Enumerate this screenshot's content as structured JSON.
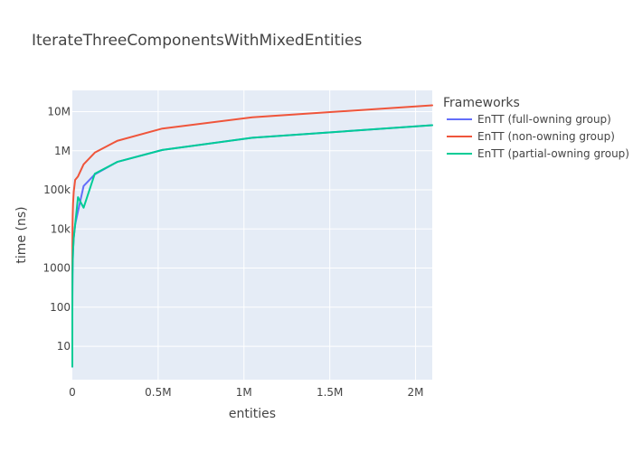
{
  "chart_data": {
    "type": "line",
    "title": "IterateThreeComponentsWithMixedEntities",
    "xlabel": "entities",
    "ylabel": "time (ns)",
    "y_scale": "log",
    "x_range": [
      0,
      2097152
    ],
    "y_range": [
      1.4,
      35000000
    ],
    "grid": true,
    "legend": {
      "title": "Frameworks",
      "placement": "right"
    },
    "x_ticks": [
      {
        "value": 0,
        "label": "0"
      },
      {
        "value": 500000,
        "label": "0.5M"
      },
      {
        "value": 1000000,
        "label": "1M"
      },
      {
        "value": 1500000,
        "label": "1.5M"
      },
      {
        "value": 2000000,
        "label": "2M"
      }
    ],
    "y_ticks": [
      {
        "value": 10,
        "label": "10"
      },
      {
        "value": 100,
        "label": "100"
      },
      {
        "value": 1000,
        "label": "1000"
      },
      {
        "value": 10000,
        "label": "10k"
      },
      {
        "value": 100000,
        "label": "100k"
      },
      {
        "value": 1000000,
        "label": "1M"
      },
      {
        "value": 10000000,
        "label": "10M"
      }
    ],
    "x": [
      1,
      2,
      4,
      8,
      16,
      32,
      64,
      128,
      256,
      512,
      1024,
      2048,
      4096,
      8192,
      16384,
      32768,
      65536,
      131072,
      262144,
      524288,
      1048576,
      2097152
    ],
    "series": [
      {
        "name": "EnTT (full-owning group)",
        "color": "#636efa",
        "values": [
          3,
          4,
          5,
          8,
          14,
          26,
          50,
          95,
          180,
          350,
          700,
          1400,
          2800,
          6000,
          13000,
          28000,
          125000,
          250000,
          520000,
          1050000,
          2150000,
          4500000
        ]
      },
      {
        "name": "EnTT (non-owning group)",
        "color": "#ef553b",
        "values": [
          20,
          30,
          50,
          90,
          170,
          330,
          650,
          1300,
          2600,
          5200,
          11000,
          22000,
          45000,
          90000,
          180000,
          220000,
          450000,
          900000,
          1800000,
          3700000,
          7200000,
          14500000
        ]
      },
      {
        "name": "EnTT (partial-owning group)",
        "color": "#00cc96",
        "values": [
          3,
          4,
          5,
          8,
          14,
          26,
          50,
          95,
          180,
          350,
          700,
          1400,
          2800,
          6000,
          13000,
          65000,
          35000,
          260000,
          520000,
          1050000,
          2150000,
          4500000
        ]
      }
    ]
  }
}
